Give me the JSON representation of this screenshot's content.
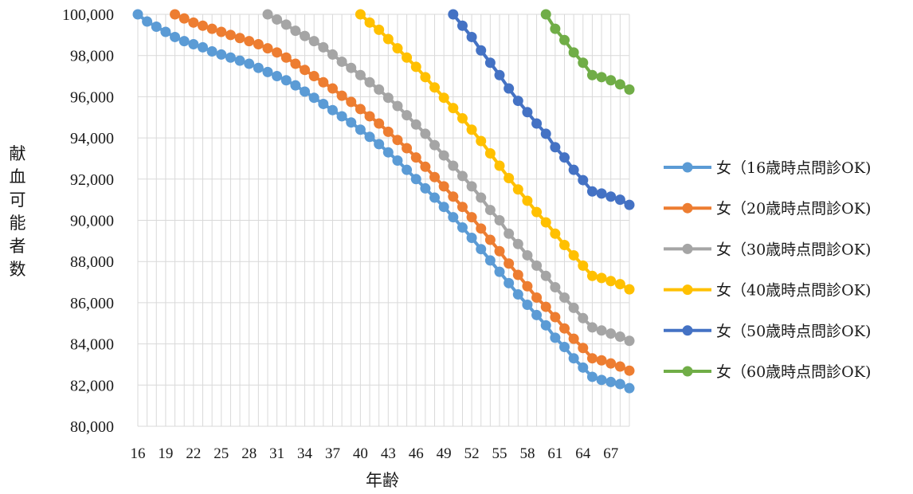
{
  "chart_data": {
    "type": "line",
    "title": "",
    "xlabel": "年齢",
    "ylabel": "献血可能者数",
    "x_start": 16,
    "x_end": 69,
    "x_tick_labels": [
      "16",
      "19",
      "22",
      "25",
      "28",
      "31",
      "34",
      "37",
      "40",
      "43",
      "46",
      "49",
      "52",
      "55",
      "58",
      "61",
      "64",
      "67"
    ],
    "ylim": [
      80000,
      100000
    ],
    "y_ticks": [
      80000,
      82000,
      84000,
      86000,
      88000,
      90000,
      92000,
      94000,
      96000,
      98000,
      100000
    ],
    "y_tick_labels": [
      "80,000",
      "82,000",
      "84,000",
      "86,000",
      "88,000",
      "90,000",
      "92,000",
      "94,000",
      "96,000",
      "98,000",
      "100,000"
    ],
    "grid": true,
    "legend_position": "right",
    "series": [
      {
        "name": "女（16歳時点問診OK)",
        "color": "#5B9BD5",
        "x_start": 16,
        "values": [
          100000,
          99650,
          99400,
          99150,
          98900,
          98700,
          98550,
          98400,
          98200,
          98050,
          97900,
          97750,
          97600,
          97400,
          97200,
          97000,
          96800,
          96550,
          96250,
          95950,
          95650,
          95350,
          95050,
          94750,
          94400,
          94050,
          93700,
          93300,
          92900,
          92450,
          92000,
          91550,
          91100,
          90650,
          90150,
          89650,
          89150,
          88600,
          88050,
          87500,
          86950,
          86400,
          85900,
          85400,
          84900,
          84300,
          83850,
          83300,
          82850,
          82400,
          82250,
          82150,
          82050,
          81850
        ]
      },
      {
        "name": "女（20歳時点問診OK)",
        "color": "#ED7D31",
        "x_start": 20,
        "values": [
          100000,
          99800,
          99600,
          99450,
          99300,
          99150,
          99000,
          98850,
          98700,
          98550,
          98350,
          98150,
          97900,
          97600,
          97300,
          97000,
          96700,
          96400,
          96050,
          95750,
          95400,
          95050,
          94700,
          94300,
          93900,
          93500,
          93050,
          92600,
          92100,
          91650,
          91150,
          90650,
          90150,
          89600,
          89050,
          88500,
          87900,
          87350,
          86800,
          86250,
          85800,
          85300,
          84750,
          84250,
          83800,
          83300,
          83200,
          83050,
          82900,
          82700
        ]
      },
      {
        "name": "女（30歳時点問診OK)",
        "color": "#A5A5A5",
        "x_start": 30,
        "values": [
          100000,
          99750,
          99500,
          99200,
          98950,
          98700,
          98400,
          98050,
          97700,
          97400,
          97050,
          96700,
          96350,
          95950,
          95550,
          95100,
          94650,
          94200,
          93650,
          93150,
          92650,
          92150,
          91650,
          91100,
          90500,
          90000,
          89350,
          88850,
          88300,
          87800,
          87300,
          86750,
          86250,
          85750,
          85250,
          84800,
          84650,
          84500,
          84350,
          84150
        ]
      },
      {
        "name": "女（40歳時点問診OK)",
        "color": "#FFC000",
        "x_start": 40,
        "values": [
          100000,
          99600,
          99250,
          98800,
          98350,
          97900,
          97450,
          96950,
          96450,
          95950,
          95450,
          94950,
          94400,
          93850,
          93250,
          92650,
          92050,
          91500,
          90950,
          90400,
          89900,
          89350,
          88800,
          88300,
          87800,
          87300,
          87200,
          87050,
          86900,
          86650
        ]
      },
      {
        "name": "女（50歳時点問診OK)",
        "color": "#4472C4",
        "x_start": 50,
        "values": [
          100000,
          99450,
          98900,
          98250,
          97650,
          97050,
          96400,
          95800,
          95250,
          94700,
          94200,
          93550,
          93050,
          92450,
          91950,
          91400,
          91300,
          91150,
          91000,
          90750
        ]
      },
      {
        "name": "女（60歳時点問診OK)",
        "color": "#70AD47",
        "x_start": 60,
        "values": [
          100000,
          99300,
          98750,
          98150,
          97650,
          97050,
          96950,
          96800,
          96600,
          96350
        ]
      }
    ]
  }
}
